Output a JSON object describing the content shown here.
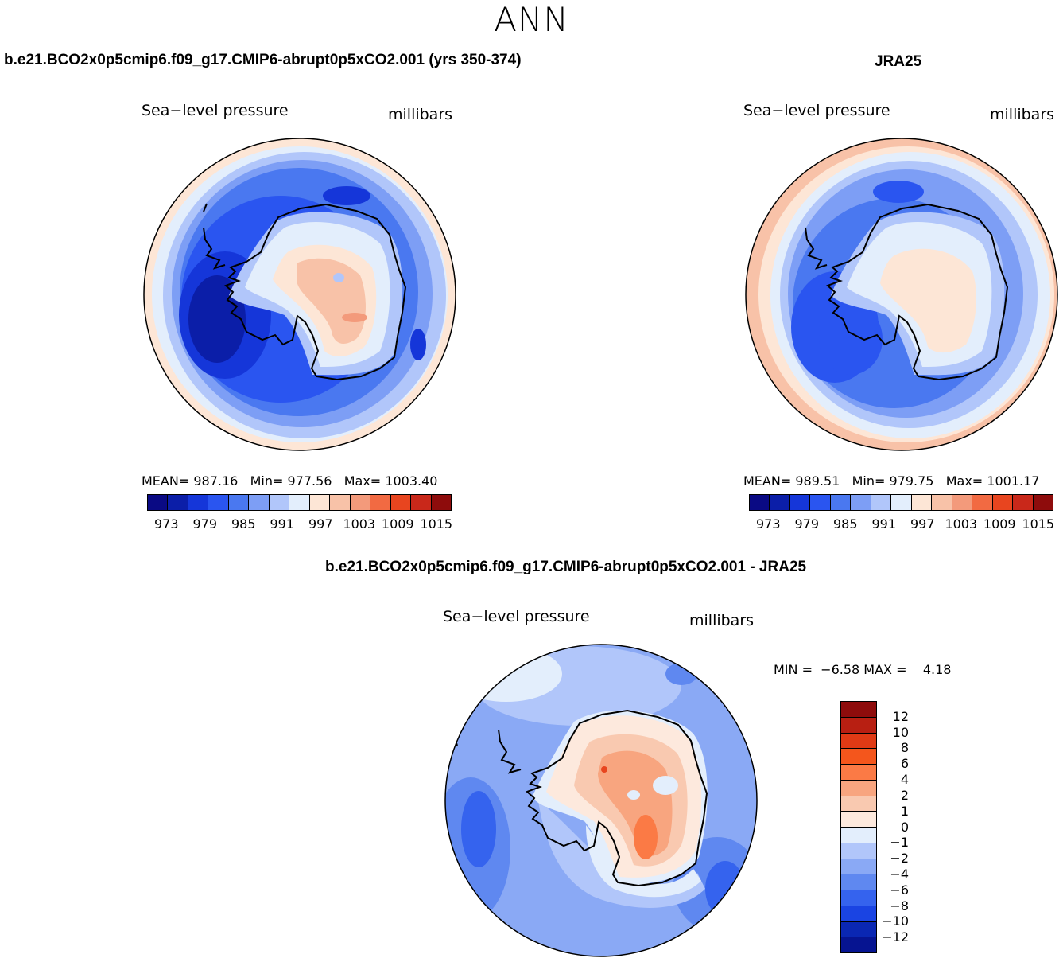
{
  "figure": {
    "title": "ANN"
  },
  "panels": [
    {
      "case_title": "b.e21.BCO2x0p5cmip6.f09_g17.CMIP6-abrupt0p5xCO2.001 (yrs 350-374)",
      "variable": "Sea−level pressure",
      "units": "millibars",
      "stats": {
        "mean_label": "MEAN=",
        "mean": "987.16",
        "min_label": "Min=",
        "min": "977.56",
        "max_label": "Max=",
        "max": "1003.40"
      }
    },
    {
      "case_title": "JRA25",
      "variable": "Sea−level pressure",
      "units": "millibars",
      "stats": {
        "mean_label": "MEAN=",
        "mean": "989.51",
        "min_label": "Min=",
        "min": "979.75",
        "max_label": "Max=",
        "max": "1001.17"
      }
    },
    {
      "case_title": "b.e21.BCO2x0p5cmip6.f09_g17.CMIP6-abrupt0p5xCO2.001 - JRA25",
      "variable": "Sea−level pressure",
      "units": "millibars",
      "stats": {
        "min_label": "MIN =",
        "min": "−6.58",
        "max_label": "MAX =",
        "max": "4.18"
      }
    }
  ],
  "colorbar_abs": {
    "colors": [
      "#0a0a84",
      "#0b1ea8",
      "#1536d9",
      "#2a55f0",
      "#4a78f0",
      "#7d9ef5",
      "#b1c6fa",
      "#e3eefc",
      "#fde6d6",
      "#f8c2a8",
      "#f39a7b",
      "#f26a42",
      "#e8451f",
      "#c9281a",
      "#8e0c0c"
    ],
    "tick_labels": [
      "973",
      "979",
      "985",
      "991",
      "997",
      "1003",
      "1009",
      "1015"
    ]
  },
  "colorbar_diff": {
    "colors": [
      "#8e0c0c",
      "#b81f12",
      "#e03a15",
      "#f4561c",
      "#fb7a45",
      "#f8a57f",
      "#f9c9b0",
      "#fde9dd",
      "#e3eefc",
      "#b1c6fa",
      "#8aa9f5",
      "#5f88f0",
      "#3563ee",
      "#1a44e3",
      "#0a27b3",
      "#061491"
    ],
    "tick_labels": [
      "12",
      "10",
      "8",
      "6",
      "4",
      "2",
      "1",
      "0",
      "−1",
      "−2",
      "−4",
      "−6",
      "−8",
      "−10",
      "−12"
    ]
  },
  "map_colors": {
    "land_outline": "#000000"
  }
}
